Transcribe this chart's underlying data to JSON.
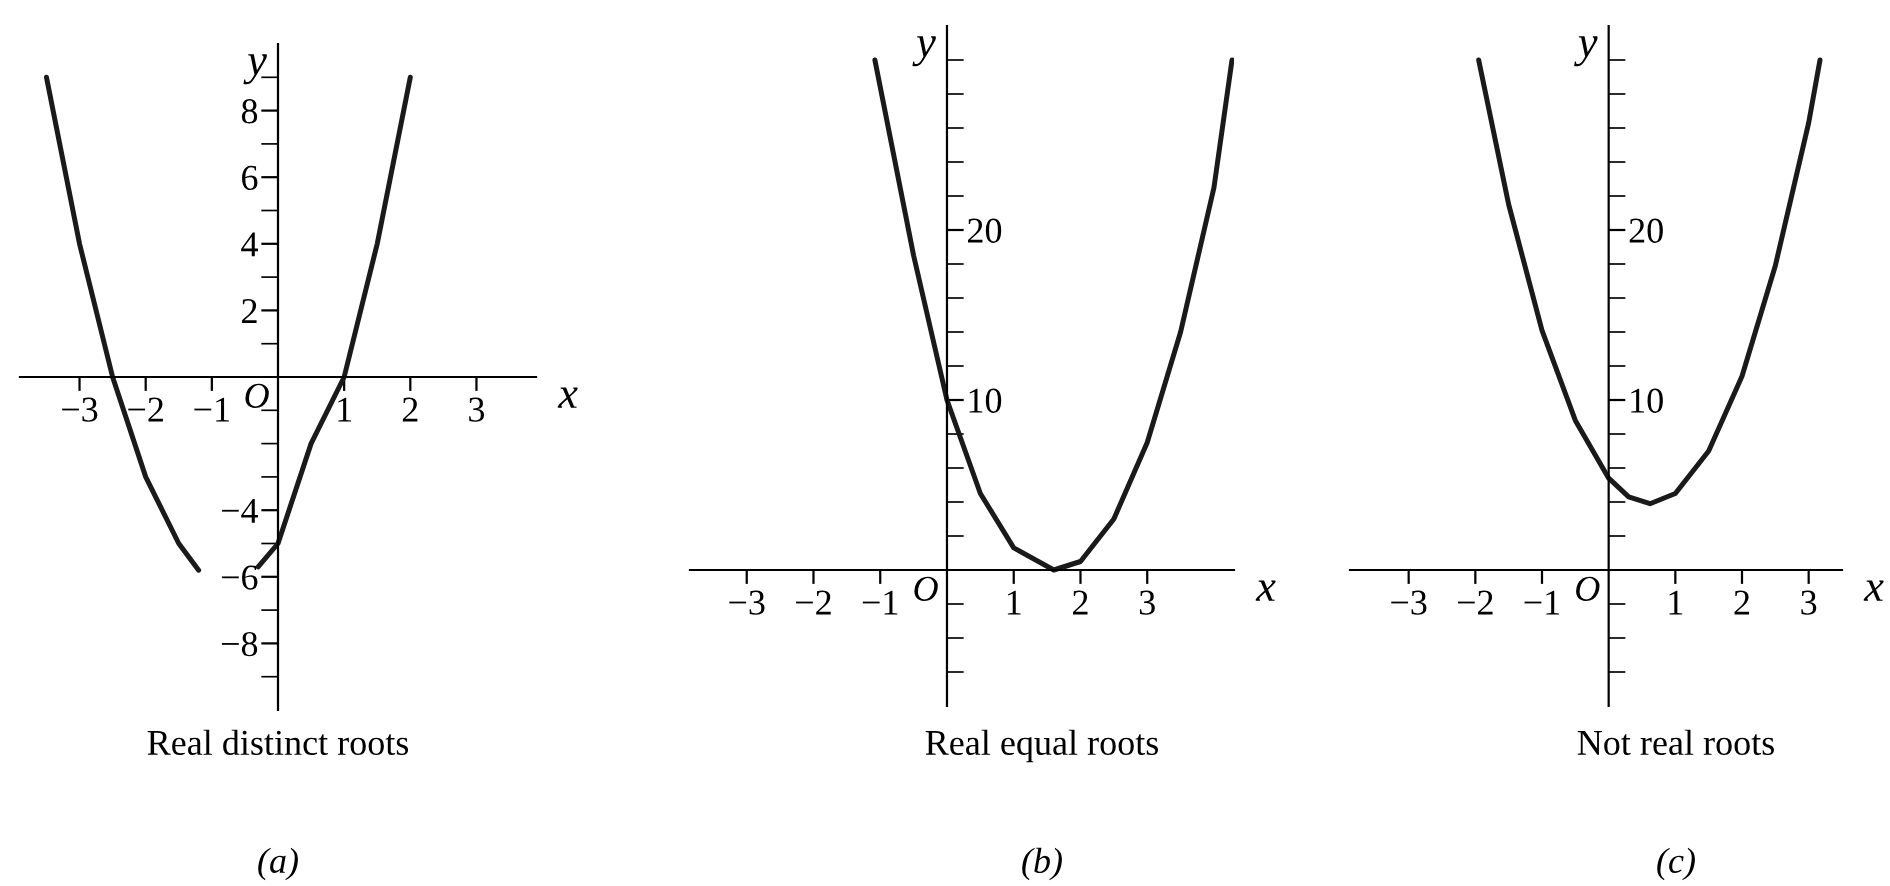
{
  "chart_data": [
    {
      "type": "line",
      "title": "Real distinct roots",
      "subtitle": "(a)",
      "xlabel": "x",
      "ylabel": "y",
      "annotations": [
        "O"
      ],
      "x": [
        -3.5,
        -3.0,
        -2.5,
        -2.0,
        -1.5,
        -1.2,
        -0.75,
        -0.3,
        0.0,
        0.5,
        1.0,
        1.5,
        2.0
      ],
      "series": [
        {
          "color": "#1a1a1a",
          "values": [
            9,
            4,
            0,
            -3,
            -5,
            -5.8,
            null,
            -5.7,
            -5,
            -2,
            0,
            4,
            9
          ]
        }
      ],
      "xlim": [
        -3.9,
        3.9
      ],
      "ylim": [
        -10,
        10
      ],
      "xticks": [
        {
          "value": -3,
          "label": "−3"
        },
        {
          "value": -2,
          "label": "−2"
        },
        {
          "value": -1,
          "label": "−1"
        },
        1,
        2,
        3
      ],
      "yticks": [
        {
          "value": -9,
          "label": null
        },
        {
          "value": -8,
          "label": "−8"
        },
        {
          "value": -7,
          "label": null
        },
        {
          "value": -6,
          "label": "−6"
        },
        {
          "value": -5,
          "label": null
        },
        {
          "value": -4,
          "label": "−4"
        },
        {
          "value": -3,
          "label": null
        },
        {
          "value": -2,
          "label": null
        },
        {
          "value": -1,
          "label": null
        },
        {
          "value": 1,
          "label": null
        },
        2,
        {
          "value": 3,
          "label": null
        },
        4,
        {
          "value": 5,
          "label": null
        },
        6,
        {
          "value": 7,
          "label": null
        },
        8,
        {
          "value": 9,
          "label": null
        }
      ]
    },
    {
      "type": "line",
      "title": "Real equal roots",
      "subtitle": "(b)",
      "xlabel": "x",
      "ylabel": "y",
      "annotations": [
        "O"
      ],
      "x": [
        -1.08,
        -0.5,
        0.0,
        0.5,
        1.0,
        1.6,
        2.0,
        2.5,
        3.0,
        3.5,
        4.0,
        4.27
      ],
      "series": [
        {
          "color": "#1a1a1a",
          "values": [
            30,
            18.5,
            10,
            4.5,
            1.3,
            0,
            0.5,
            3,
            7.5,
            14,
            22.5,
            30
          ]
        }
      ],
      "xlim": [
        -3.85,
        4.3
      ],
      "ylim": [
        -8,
        32
      ],
      "xticks": [
        {
          "value": -3,
          "label": "−3"
        },
        {
          "value": -2,
          "label": "−2"
        },
        {
          "value": -1,
          "label": "−1"
        },
        1,
        2,
        3
      ],
      "yticks": [
        {
          "value": -6,
          "label": null
        },
        {
          "value": -4,
          "label": null
        },
        {
          "value": -2,
          "label": null
        },
        {
          "value": 2,
          "label": null
        },
        {
          "value": 4,
          "label": null
        },
        {
          "value": 6,
          "label": null
        },
        {
          "value": 8,
          "label": null
        },
        10,
        {
          "value": 12,
          "label": null
        },
        {
          "value": 14,
          "label": null
        },
        {
          "value": 16,
          "label": null
        },
        {
          "value": 18,
          "label": null
        },
        20,
        {
          "value": 22,
          "label": null
        },
        {
          "value": 24,
          "label": null
        },
        {
          "value": 26,
          "label": null
        },
        {
          "value": 28,
          "label": null
        },
        {
          "value": 30,
          "label": null
        }
      ]
    },
    {
      "type": "line",
      "title": "Not real roots",
      "subtitle": "(c)",
      "xlabel": "x",
      "ylabel": "y",
      "annotations": [
        "O"
      ],
      "x": [
        -1.95,
        -1.5,
        -1.0,
        -0.5,
        0.0,
        0.3,
        0.62,
        1.0,
        1.5,
        2.0,
        2.5,
        3.0,
        3.17
      ],
      "series": [
        {
          "color": "#1a1a1a",
          "values": [
            30,
            21.5,
            14.1,
            8.8,
            5.4,
            4.3,
            3.9,
            4.5,
            7,
            11.4,
            17.9,
            26.3,
            30
          ]
        }
      ],
      "xlim": [
        -3.88,
        3.5
      ],
      "ylim": [
        -8,
        32
      ],
      "xticks": [
        {
          "value": -3,
          "label": "−3"
        },
        {
          "value": -2,
          "label": "−2"
        },
        {
          "value": -1,
          "label": "−1"
        },
        1,
        2,
        3
      ],
      "yticks": [
        {
          "value": -6,
          "label": null
        },
        {
          "value": -4,
          "label": null
        },
        {
          "value": -2,
          "label": null
        },
        {
          "value": 2,
          "label": null
        },
        {
          "value": 4,
          "label": null
        },
        {
          "value": 6,
          "label": null
        },
        {
          "value": 8,
          "label": null
        },
        10,
        {
          "value": 12,
          "label": null
        },
        {
          "value": 14,
          "label": null
        },
        {
          "value": 16,
          "label": null
        },
        {
          "value": 18,
          "label": null
        },
        20,
        {
          "value": 22,
          "label": null
        },
        {
          "value": 24,
          "label": null
        },
        {
          "value": 26,
          "label": null
        },
        {
          "value": 28,
          "label": null
        },
        {
          "value": 30,
          "label": null
        }
      ]
    }
  ]
}
